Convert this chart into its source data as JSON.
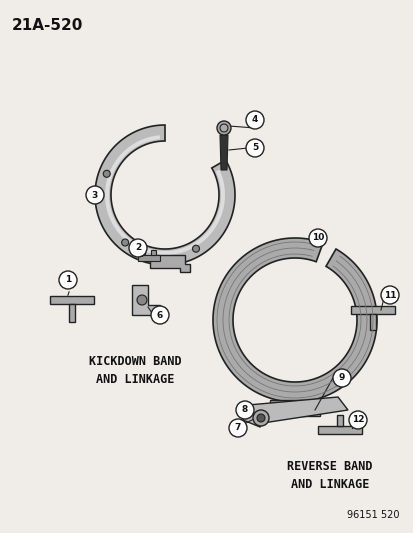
{
  "title": "21A-520",
  "bg_color": "#f0ede8",
  "part_number": "96151 520",
  "kickdown_label": "KICKDOWN BAND\nAND LINKAGE",
  "reverse_label": "REVERSE BAND\nAND LINKAGE",
  "callout_numbers": [
    1,
    2,
    3,
    4,
    5,
    6,
    7,
    8,
    9,
    10,
    11,
    12
  ],
  "line_color": "#222222",
  "fill_color": "#cccccc",
  "text_color": "#111111"
}
